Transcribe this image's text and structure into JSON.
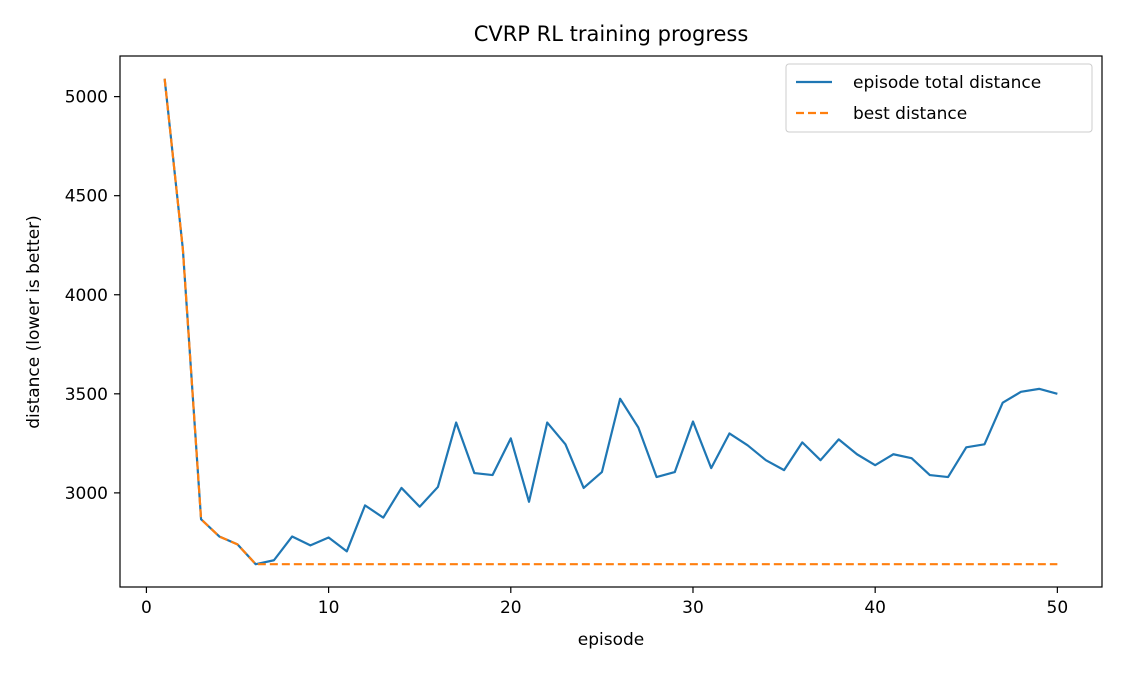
{
  "chart_data": {
    "type": "line",
    "title": "CVRP RL training progress",
    "xlabel": "episode",
    "ylabel": "distance (lower is better)",
    "xlim": [
      -1.45,
      52.45
    ],
    "ylim": [
      2525,
      5205
    ],
    "xticks": [
      0,
      10,
      20,
      30,
      40,
      50
    ],
    "yticks": [
      3000,
      3500,
      4000,
      4500,
      5000
    ],
    "legend_position": "top-right",
    "grid": false,
    "x": [
      1,
      2,
      3,
      4,
      5,
      6,
      7,
      8,
      9,
      10,
      11,
      12,
      13,
      14,
      15,
      16,
      17,
      18,
      19,
      20,
      21,
      22,
      23,
      24,
      25,
      26,
      27,
      28,
      29,
      30,
      31,
      32,
      33,
      34,
      35,
      36,
      37,
      38,
      39,
      40,
      41,
      42,
      43,
      44,
      45,
      46,
      47,
      48,
      49,
      50
    ],
    "series": [
      {
        "name": "episode total distance",
        "color": "#1f77b4",
        "style": "solid",
        "values": [
          5090,
          4230,
          2867,
          2780,
          2740,
          2640,
          2660,
          2780,
          2735,
          2775,
          2705,
          2937,
          2875,
          3025,
          2930,
          3030,
          3355,
          3100,
          3090,
          3275,
          2955,
          3355,
          3245,
          3025,
          3105,
          3475,
          3330,
          3080,
          3105,
          3360,
          3125,
          3300,
          3240,
          3165,
          3115,
          3255,
          3165,
          3270,
          3195,
          3140,
          3195,
          3175,
          3090,
          3080,
          3230,
          3245,
          3455,
          3510,
          3525,
          3500
        ]
      },
      {
        "name": "best distance",
        "color": "#ff7f0e",
        "style": "dashed",
        "values": [
          5090,
          4230,
          2867,
          2780,
          2740,
          2640,
          2640,
          2640,
          2640,
          2640,
          2640,
          2640,
          2640,
          2640,
          2640,
          2640,
          2640,
          2640,
          2640,
          2640,
          2640,
          2640,
          2640,
          2640,
          2640,
          2640,
          2640,
          2640,
          2640,
          2640,
          2640,
          2640,
          2640,
          2640,
          2640,
          2640,
          2640,
          2640,
          2640,
          2640,
          2640,
          2640,
          2640,
          2640,
          2640,
          2640,
          2640,
          2640,
          2640,
          2640
        ]
      }
    ]
  }
}
